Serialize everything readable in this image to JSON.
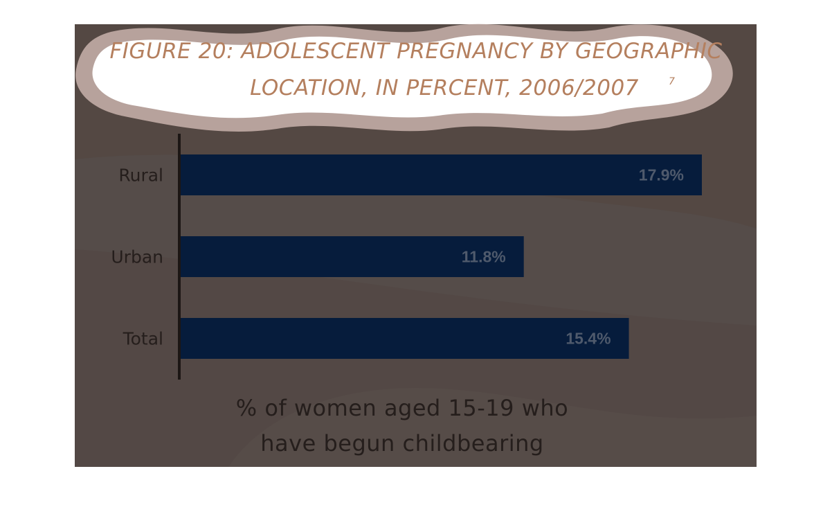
{
  "title": {
    "line1": "FIGURE 20: ADOLESCENT PREGNANCY BY GEOGRAPHIC",
    "line2": "LOCATION, IN PERCENT, 2006/2007",
    "footnote": "7"
  },
  "colors": {
    "background": "#544843",
    "cloud_outer": "#b7a29c",
    "cloud_inner": "#ffffff",
    "title_text": "#b47f5e",
    "bar": "#061c3c",
    "value_text": "#4f5a6c",
    "label_text": "#251e1c",
    "axis": "#1c1614"
  },
  "chart_data": {
    "type": "bar",
    "orientation": "horizontal",
    "categories": [
      "Rural",
      "Urban",
      "Total"
    ],
    "values": [
      17.9,
      11.8,
      15.4
    ],
    "value_labels": [
      "17.9%",
      "11.8%",
      "15.4%"
    ],
    "xlabel_lines": [
      "% of women aged 15-19 who",
      "have begun childbearing"
    ],
    "xlim": [
      0,
      17.9
    ],
    "grid": false,
    "legend": "none"
  }
}
